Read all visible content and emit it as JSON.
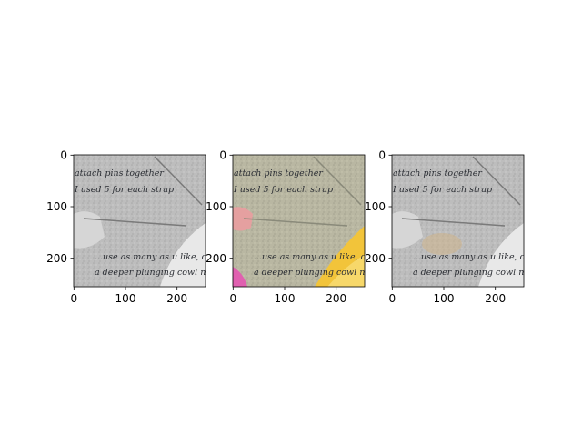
{
  "figure": {
    "panels": [
      {
        "id": "grayscale",
        "x_ticks": [
          "0",
          "100",
          "200"
        ],
        "y_ticks": [
          "0",
          "100",
          "200"
        ],
        "text_lines": [
          "attach pins together",
          "I used 5 for each strap",
          "...use as many as u like, crea",
          "a deeper plunging cowl neckli"
        ]
      },
      {
        "id": "color",
        "x_ticks": [
          "0",
          "100",
          "200"
        ],
        "y_ticks": [
          "0",
          "100",
          "200"
        ],
        "text_lines": [
          "attach pins together",
          "I used 5 for each strap",
          "...use as many as u like, crea",
          "a deeper plunging cowl neckli"
        ]
      },
      {
        "id": "grayscale-highlight",
        "x_ticks": [
          "0",
          "100",
          "200"
        ],
        "y_ticks": [
          "0",
          "100",
          "200"
        ],
        "text_lines": [
          "attach pins together",
          "I used 5 for each strap",
          "...use as many as u like, crea",
          "a deeper plunging cowl neckli"
        ]
      }
    ],
    "colors": {
      "gravel_gray": "#b9b9b9",
      "gravel_tinted": "#b8b6a0",
      "fabric_yellow": "#f2c43a",
      "fabric_pink": "#e060b0",
      "skin_pink": "#e5a0a0",
      "highlight_tan": "#cfb48a"
    }
  }
}
